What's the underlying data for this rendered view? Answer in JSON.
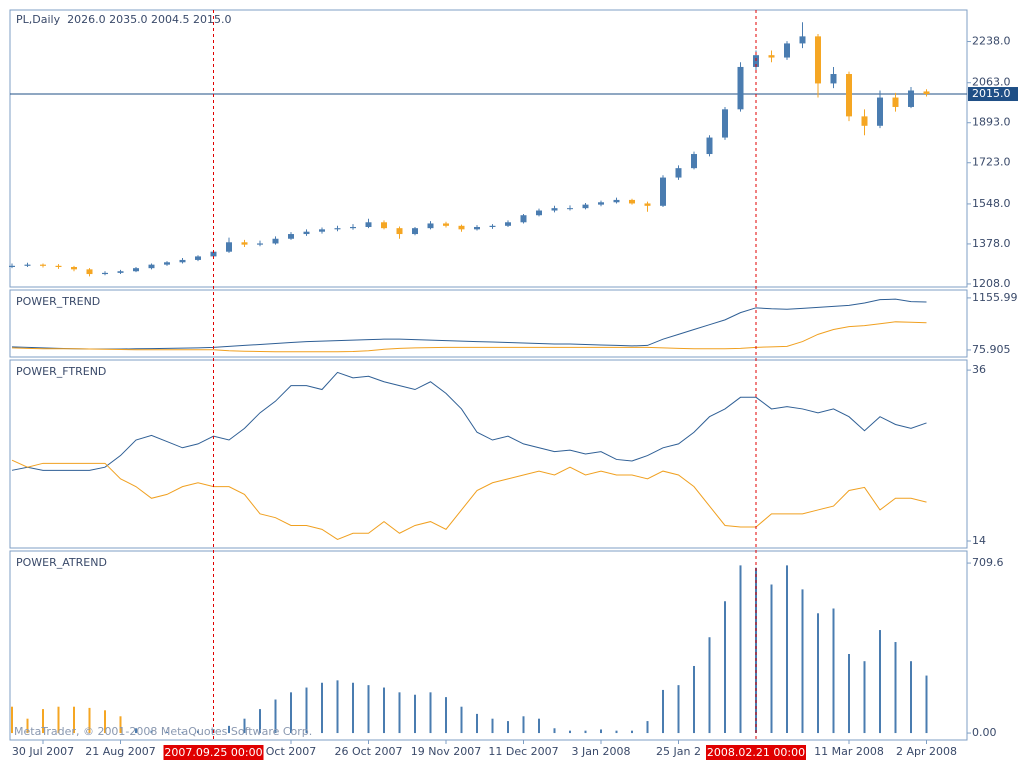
{
  "chart_data": {
    "type": "candlestick",
    "title": "PL,Daily  2026.0 2035.0 2004.5 2015.0",
    "colors": {
      "up": "#4a7cb0",
      "down": "#f5a623",
      "price": "#1f4f86",
      "marker": "#e00000"
    },
    "ylim": [
      1195,
      2372
    ],
    "yticks": [
      {
        "value": 2238,
        "label": "2238.0"
      },
      {
        "value": 2063,
        "label": "2063.0"
      },
      {
        "value": 1893,
        "label": "1893.0"
      },
      {
        "value": 1723,
        "label": "1723.0"
      },
      {
        "value": 1548,
        "label": "1548.0"
      },
      {
        "value": 1378,
        "label": "1378.0"
      },
      {
        "value": 1208,
        "label": "1208.0"
      }
    ],
    "price": {
      "value": 2015,
      "label": "2015.0"
    },
    "categories": [
      null,
      null,
      "30 Jul 2007",
      null,
      null,
      null,
      null,
      "21 Aug 2007",
      null,
      null,
      null,
      null,
      null,
      null,
      null,
      null,
      null,
      null,
      "Oct 2007",
      null,
      null,
      null,
      null,
      "26 Oct 2007",
      null,
      null,
      null,
      null,
      "19 Nov 2007",
      null,
      null,
      null,
      null,
      "11 Dec 2007",
      null,
      null,
      null,
      null,
      "3 Jan 2008",
      null,
      null,
      null,
      null,
      "25 Jan 2",
      null,
      null,
      null,
      null,
      null,
      null,
      null,
      null,
      null,
      null,
      "11 Mar 2008",
      null,
      null,
      null,
      null,
      "2 Apr 2008"
    ],
    "markers": [
      null,
      null,
      null,
      null,
      null,
      null,
      null,
      null,
      null,
      null,
      null,
      null,
      null,
      "2007.09.25 00:00",
      null,
      null,
      null,
      null,
      null,
      null,
      null,
      null,
      null,
      null,
      null,
      null,
      null,
      null,
      null,
      null,
      null,
      null,
      null,
      null,
      null,
      null,
      null,
      null,
      null,
      null,
      null,
      null,
      null,
      null,
      null,
      null,
      null,
      null,
      "2008.02.21 00:00",
      null,
      null,
      null,
      null,
      null,
      null,
      null,
      null,
      null,
      null,
      null
    ],
    "candles": [
      [
        1280,
        1295,
        1275,
        1285
      ],
      [
        1285,
        1298,
        1280,
        1290
      ],
      [
        1290,
        1295,
        1278,
        1285
      ],
      [
        1285,
        1292,
        1272,
        1280
      ],
      [
        1280,
        1285,
        1262,
        1270
      ],
      [
        1270,
        1275,
        1240,
        1250
      ],
      [
        1250,
        1262,
        1245,
        1255
      ],
      [
        1255,
        1268,
        1250,
        1262
      ],
      [
        1262,
        1280,
        1258,
        1275
      ],
      [
        1275,
        1295,
        1270,
        1290
      ],
      [
        1290,
        1305,
        1285,
        1300
      ],
      [
        1300,
        1318,
        1295,
        1310
      ],
      [
        1310,
        1330,
        1305,
        1325
      ],
      [
        1325,
        1350,
        1320,
        1345
      ],
      [
        1345,
        1405,
        1340,
        1385
      ],
      [
        1385,
        1395,
        1365,
        1375
      ],
      [
        1375,
        1392,
        1368,
        1380
      ],
      [
        1380,
        1410,
        1375,
        1400
      ],
      [
        1400,
        1428,
        1395,
        1420
      ],
      [
        1420,
        1440,
        1412,
        1430
      ],
      [
        1430,
        1448,
        1422,
        1440
      ],
      [
        1440,
        1455,
        1432,
        1445
      ],
      [
        1445,
        1462,
        1438,
        1450
      ],
      [
        1450,
        1485,
        1445,
        1470
      ],
      [
        1470,
        1478,
        1440,
        1445
      ],
      [
        1445,
        1452,
        1400,
        1420
      ],
      [
        1420,
        1450,
        1415,
        1445
      ],
      [
        1445,
        1475,
        1440,
        1465
      ],
      [
        1465,
        1472,
        1448,
        1455
      ],
      [
        1455,
        1460,
        1430,
        1440
      ],
      [
        1440,
        1458,
        1435,
        1450
      ],
      [
        1450,
        1462,
        1442,
        1455
      ],
      [
        1455,
        1478,
        1450,
        1470
      ],
      [
        1470,
        1505,
        1465,
        1500
      ],
      [
        1500,
        1528,
        1495,
        1520
      ],
      [
        1520,
        1540,
        1512,
        1530
      ],
      [
        1530,
        1542,
        1520,
        1530
      ],
      [
        1530,
        1552,
        1525,
        1545
      ],
      [
        1545,
        1562,
        1538,
        1555
      ],
      [
        1555,
        1575,
        1550,
        1565
      ],
      [
        1565,
        1570,
        1545,
        1550
      ],
      [
        1550,
        1558,
        1515,
        1540
      ],
      [
        1540,
        1670,
        1535,
        1660
      ],
      [
        1660,
        1712,
        1650,
        1700
      ],
      [
        1700,
        1770,
        1695,
        1760
      ],
      [
        1760,
        1840,
        1750,
        1830
      ],
      [
        1830,
        1960,
        1820,
        1950
      ],
      [
        1950,
        2150,
        1940,
        2130
      ],
      [
        2130,
        2200,
        2110,
        2180
      ],
      [
        2180,
        2200,
        2150,
        2170
      ],
      [
        2170,
        2240,
        2160,
        2230
      ],
      [
        2230,
        2320,
        2210,
        2260
      ],
      [
        2260,
        2270,
        2000,
        2060
      ],
      [
        2060,
        2130,
        2040,
        2100
      ],
      [
        2100,
        2110,
        1900,
        1920
      ],
      [
        1920,
        1950,
        1840,
        1880
      ],
      [
        1880,
        2030,
        1870,
        2000
      ],
      [
        2000,
        2020,
        1940,
        1960
      ],
      [
        1960,
        2045,
        1955,
        2030
      ],
      [
        2026,
        2035,
        2004.5,
        2015
      ]
    ],
    "indicators": [
      {
        "type": "line",
        "title": "POWER_TREND",
        "ylim": [
          -70,
          1320
        ],
        "yticks": [
          {
            "value": 1155.995,
            "label": "1155.995"
          },
          75.905
        ],
        "series": [
          {
            "color": "#2f5f95",
            "values": [
              140,
              130,
              120,
              110,
              100,
              95,
              95,
              95,
              100,
              105,
              110,
              115,
              120,
              130,
              150,
              170,
              190,
              210,
              230,
              250,
              260,
              270,
              280,
              290,
              300,
              300,
              290,
              280,
              270,
              260,
              250,
              240,
              230,
              220,
              210,
              200,
              200,
              190,
              180,
              170,
              160,
              170,
              300,
              400,
              500,
              600,
              700,
              850,
              950,
              930,
              920,
              940,
              960,
              980,
              1000,
              1050,
              1120,
              1130,
              1080,
              1070
            ]
          },
          {
            "color": "#f0a020",
            "values": [
              120,
              110,
              100,
              100,
              100,
              95,
              90,
              85,
              80,
              80,
              80,
              80,
              80,
              80,
              60,
              50,
              45,
              40,
              40,
              40,
              40,
              40,
              45,
              60,
              90,
              110,
              120,
              125,
              130,
              130,
              130,
              130,
              130,
              130,
              130,
              130,
              130,
              130,
              130,
              130,
              130,
              130,
              120,
              110,
              100,
              100,
              100,
              110,
              130,
              140,
              150,
              250,
              400,
              500,
              560,
              580,
              620,
              660,
              650,
              640
            ]
          }
        ]
      },
      {
        "type": "line",
        "title": "POWER_FTREND",
        "ylim": [
          13.1,
          37.3
        ],
        "yticks": [
          36,
          14
        ],
        "series": [
          {
            "color": "#2f5f95",
            "values": [
              23.1,
              23.5,
              23.1,
              23.1,
              23.1,
              23.1,
              23.5,
              25,
              27,
              27.6,
              26.8,
              26,
              26.5,
              27.5,
              27,
              28.5,
              30.5,
              32,
              34,
              34,
              33.5,
              35.7,
              35,
              35.2,
              34.5,
              34,
              33.5,
              34.5,
              33,
              31,
              28,
              27,
              27.5,
              26.5,
              26,
              25.5,
              25.7,
              25.2,
              25.5,
              24.5,
              24.3,
              25,
              26,
              26.5,
              28,
              30,
              31,
              32.5,
              32.5,
              31,
              31.3,
              31,
              30.5,
              31,
              30,
              28.2,
              30,
              29,
              28.5,
              29.2
            ]
          },
          {
            "color": "#f0a020",
            "values": [
              24.4,
              23.5,
              24,
              24,
              24,
              24,
              24,
              22,
              21,
              19.5,
              20,
              21,
              21.5,
              21,
              21,
              20,
              17.5,
              17,
              16,
              16,
              15.5,
              14.2,
              15,
              15,
              16.5,
              15,
              16,
              16.5,
              15.5,
              18,
              20.5,
              21.5,
              22,
              22.5,
              23,
              22.5,
              23.5,
              22.5,
              23,
              22.5,
              22.5,
              22,
              23,
              22.5,
              21,
              18.5,
              16,
              15.8,
              15.8,
              17.5,
              17.5,
              17.5,
              18,
              18.5,
              20.5,
              20.9,
              18,
              19.5,
              19.5,
              19
            ]
          }
        ]
      },
      {
        "type": "bar",
        "title": "POWER_ATREND",
        "ylim": [
          -29,
          760
        ],
        "yticks": [
          709.6,
          {
            "value": 0,
            "label": "0.00"
          }
        ],
        "series": [
          {
            "color": "#f5a623",
            "values": [
              110,
              60,
              100,
              110,
              110,
              105,
              95,
              70,
              null,
              null,
              null,
              null,
              null,
              null,
              null,
              null,
              null,
              null,
              null,
              null,
              null,
              null,
              null,
              null,
              null,
              null,
              null,
              null,
              null,
              null,
              null,
              null,
              null,
              null,
              null,
              null,
              null,
              null,
              null,
              null,
              null,
              null,
              null,
              null,
              null,
              null,
              null,
              null,
              null,
              null,
              null,
              null,
              null,
              null,
              null,
              null,
              null,
              null,
              null,
              null
            ]
          },
          {
            "color": "#4a7cb0",
            "values": [
              null,
              null,
              null,
              null,
              null,
              null,
              null,
              null,
              20,
              10,
              5,
              5,
              10,
              15,
              30,
              60,
              100,
              140,
              170,
              190,
              210,
              220,
              210,
              200,
              190,
              170,
              160,
              170,
              150,
              110,
              80,
              60,
              50,
              70,
              60,
              20,
              10,
              10,
              15,
              10,
              10,
              50,
              180,
              200,
              280,
              400,
              550,
              700,
              690,
              620,
              700,
              600,
              500,
              520,
              330,
              300,
              430,
              380,
              300,
              240
            ]
          }
        ]
      }
    ],
    "watermark": "MetaTrader, © 2001-2008 MetaQuotes Software Corp."
  }
}
